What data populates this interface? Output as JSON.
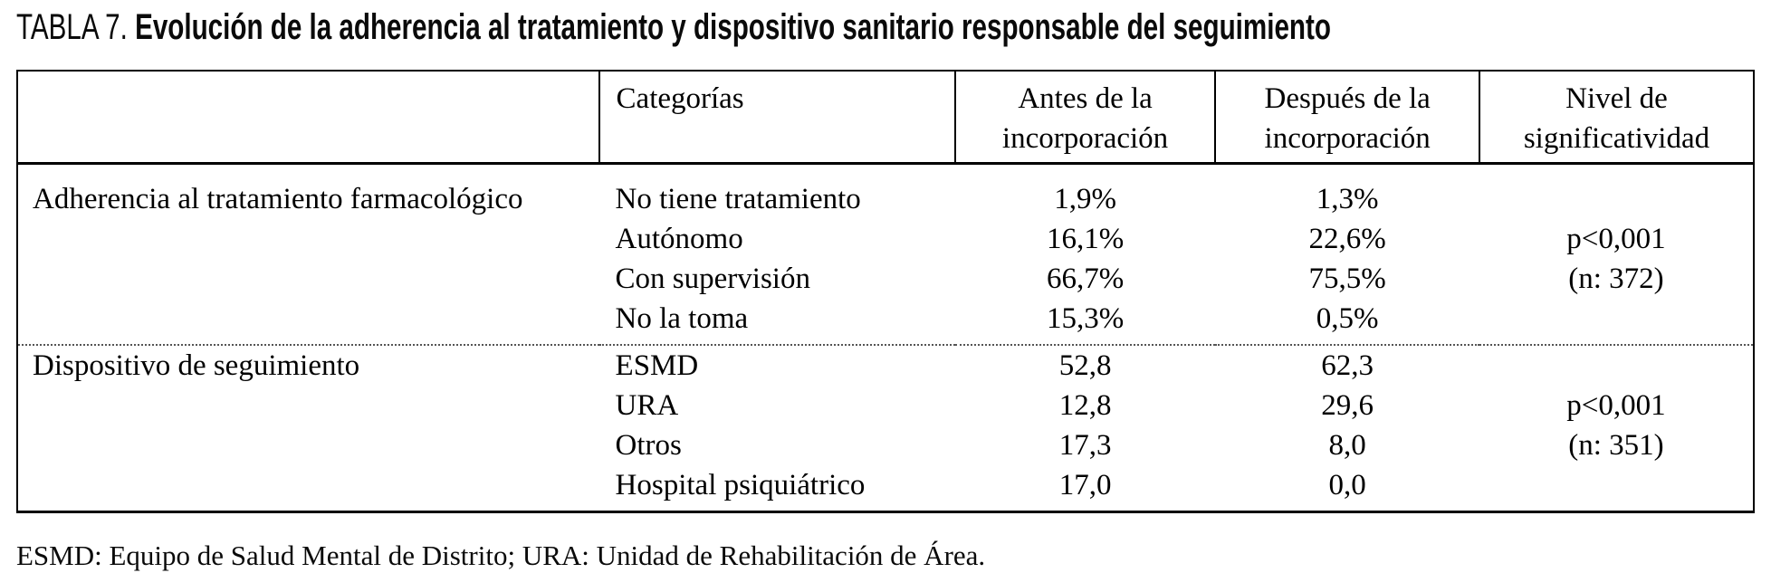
{
  "title": {
    "label": "TABLA 7.",
    "text": "Evolución de la adherencia al tratamiento y dispositivo sanitario responsable del seguimiento"
  },
  "table": {
    "headers": {
      "col1": "",
      "col2": "Categorías",
      "col3": "Antes de la incorporación",
      "col4": "Después de la incorporación",
      "col5": "Nivel de significatividad"
    },
    "sections": [
      {
        "label": "Adherencia al tratamiento farmacológico",
        "rows": [
          {
            "categoria": "No tiene tratamiento",
            "antes": "1,9%",
            "despues": "1,3%",
            "nivel": ""
          },
          {
            "categoria": "Autónomo",
            "antes": "16,1%",
            "despues": "22,6%",
            "nivel": "p<0,001"
          },
          {
            "categoria": "Con supervisión",
            "antes": "66,7%",
            "despues": "75,5%",
            "nivel": "(n: 372)"
          },
          {
            "categoria": "No la toma",
            "antes": "15,3%",
            "despues": "0,5%",
            "nivel": ""
          }
        ]
      },
      {
        "label": "Dispositivo de seguimiento",
        "rows": [
          {
            "categoria": "ESMD",
            "antes": "52,8",
            "despues": "62,3",
            "nivel": ""
          },
          {
            "categoria": "URA",
            "antes": "12,8",
            "despues": "29,6",
            "nivel": "p<0,001"
          },
          {
            "categoria": "Otros",
            "antes": "17,3",
            "despues": "8,0",
            "nivel": "(n: 351)"
          },
          {
            "categoria": "Hospital psiquiátrico",
            "antes": "17,0",
            "despues": "0,0",
            "nivel": ""
          }
        ]
      }
    ]
  },
  "footnote": "ESMD: Equipo de Salud Mental de Distrito; URA: Unidad de Rehabilitación de Área."
}
